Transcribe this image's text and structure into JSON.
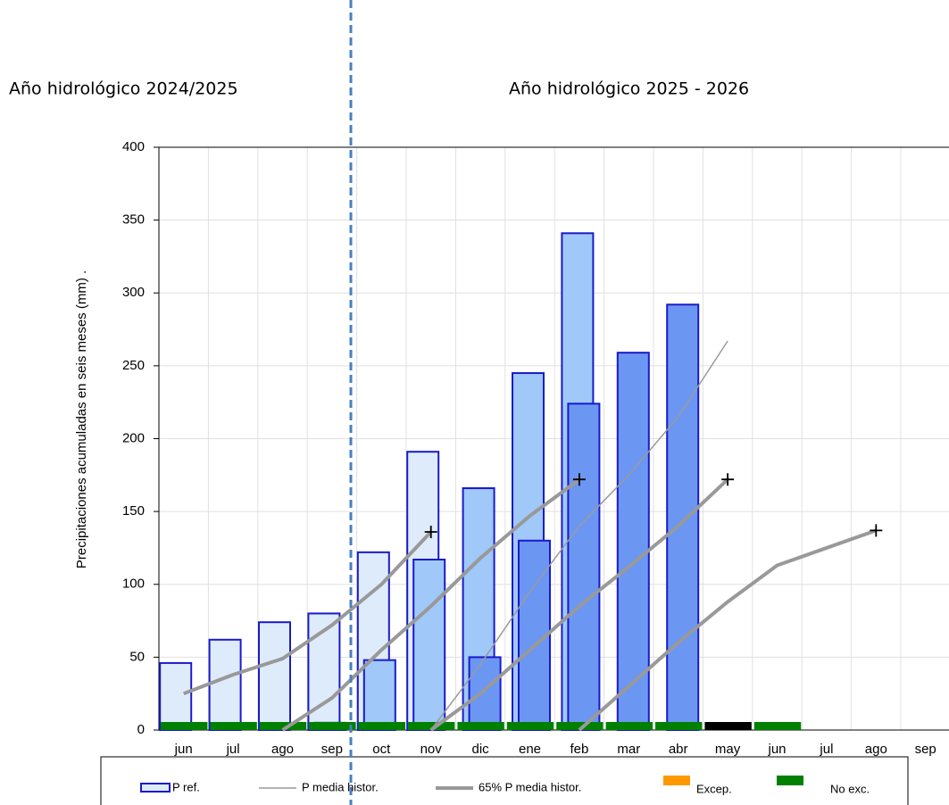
{
  "chart_data": {
    "type": "bar",
    "headings": [
      "Año hidrológico 2024/2025",
      "Año hidrológico 2025 - 2026"
    ],
    "y_label": "Precipitaciones acumuladas en seis meses (mm)  .",
    "categories": [
      "jun",
      "jul",
      "ago",
      "sep",
      "oct",
      "nov",
      "dic",
      "ene",
      "feb",
      "mar",
      "abr",
      "may",
      "jun",
      "jul",
      "ago",
      "sep"
    ],
    "ylim": [
      0,
      400
    ],
    "yticks": [
      0,
      50,
      100,
      150,
      200,
      250,
      300,
      350,
      400
    ],
    "grid": true,
    "bars": {
      "name": "P ref.",
      "stroke": "#1a1acc",
      "groups": [
        {
          "color": "#deebfb",
          "values": [
            46,
            62,
            74,
            80,
            122,
            191,
            null,
            null,
            null,
            null,
            null,
            null,
            null,
            null,
            null,
            null
          ]
        },
        {
          "color": "#a0c8f8",
          "values": [
            null,
            null,
            null,
            5,
            48,
            117,
            166,
            245,
            341,
            null,
            null,
            null,
            null,
            null,
            null,
            null
          ]
        },
        {
          "color": "#6b97f3",
          "values": [
            null,
            null,
            null,
            null,
            null,
            null,
            50,
            130,
            224,
            259,
            292,
            null,
            null,
            null,
            null,
            null
          ]
        }
      ]
    },
    "lines": [
      {
        "name": "P media histor.",
        "color": "#9a9a9a",
        "width": 1.5,
        "segments": [
          [
            null,
            null,
            null,
            null,
            null,
            0,
            45,
            95,
            140,
            175,
            215,
            267,
            null,
            null,
            null,
            null
          ]
        ]
      },
      {
        "name": "65% P media histor.",
        "color": "#999999",
        "width": 4,
        "segments": [
          [
            25,
            38,
            49,
            72,
            100,
            136,
            null,
            null,
            null,
            null,
            null,
            null,
            null,
            null,
            null,
            null
          ],
          [
            null,
            null,
            0,
            22,
            55,
            85,
            118,
            147,
            172,
            null,
            null,
            null,
            null,
            null,
            null,
            null
          ],
          [
            null,
            null,
            null,
            null,
            null,
            0,
            25,
            55,
            85,
            112,
            140,
            172,
            null,
            null,
            null,
            null
          ],
          [
            null,
            null,
            null,
            null,
            null,
            null,
            null,
            null,
            0,
            30,
            60,
            88,
            113,
            125,
            137,
            null
          ]
        ]
      }
    ],
    "status": [
      "#008000",
      "#008000",
      "#008000",
      "#008000",
      "#008000",
      "#008000",
      "#008000",
      "#008000",
      "#008000",
      "#008000",
      "#008000",
      "#000000",
      "#008000",
      null,
      null,
      null
    ],
    "status_legend": [
      {
        "label": "Excep.",
        "color": "#ff9900"
      },
      {
        "label": "No exc.",
        "color": "#008000"
      }
    ]
  }
}
